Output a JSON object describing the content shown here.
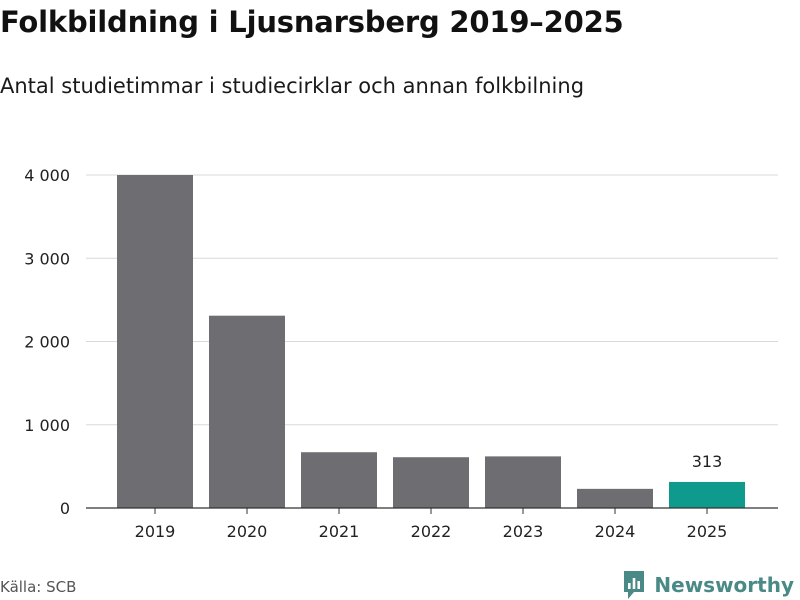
{
  "header": {
    "title": "Folkbildning i Ljusnarsberg 2019–2025",
    "subtitle": "Antal studietimmar i studiecirklar och annan folkbilning"
  },
  "footer": {
    "source": "Källa: SCB",
    "brand": "Newsworthy"
  },
  "colors": {
    "bar": "#6e6d72",
    "highlight": "#0f9a8e",
    "grid": "#d9d9d9",
    "axis": "#333333",
    "brand": "#4a8a86"
  },
  "chart_data": {
    "type": "bar",
    "title": "Folkbildning i Ljusnarsberg 2019–2025",
    "subtitle": "Antal studietimmar i studiecirklar och annan folkbilning",
    "xlabel": "",
    "ylabel": "",
    "categories": [
      "2019",
      "2020",
      "2021",
      "2022",
      "2023",
      "2024",
      "2025"
    ],
    "values": [
      4000,
      2310,
      670,
      610,
      620,
      230,
      313
    ],
    "ylim": [
      0,
      4000
    ],
    "yticks": [
      0,
      1000,
      2000,
      3000,
      4000
    ],
    "ytick_labels": [
      "0",
      "1 000",
      "2 000",
      "3 000",
      "4 000"
    ],
    "highlight_index": 6,
    "data_labels": [
      {
        "index": 6,
        "text": "313"
      }
    ],
    "grid": true
  }
}
